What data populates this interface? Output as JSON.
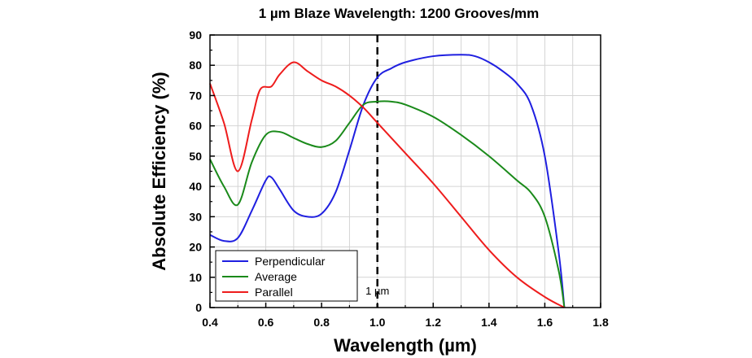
{
  "chart_data": {
    "type": "line",
    "title": "1 µm Blaze Wavelength: 1200 Grooves/mm",
    "xlabel": "Wavelength (µm)",
    "ylabel": "Absolute Efficiency (%)",
    "xlim": [
      0.4,
      1.8
    ],
    "ylim": [
      0,
      90
    ],
    "xticks": [
      "0.4",
      "0.6",
      "0.8",
      "1.0",
      "1.2",
      "1.4",
      "1.6",
      "1.8"
    ],
    "yticks": [
      "0",
      "10",
      "20",
      "30",
      "40",
      "50",
      "60",
      "70",
      "80",
      "90"
    ],
    "grid": true,
    "legend_position": "bottom-left",
    "annotation": {
      "label": "1 µm",
      "x": 1.0
    },
    "series": [
      {
        "name": "Perpendicular",
        "color": "#1f1fe0",
        "x": [
          0.4,
          0.45,
          0.5,
          0.55,
          0.6,
          0.62,
          0.65,
          0.7,
          0.75,
          0.8,
          0.85,
          0.9,
          0.95,
          1.0,
          1.05,
          1.1,
          1.2,
          1.3,
          1.35,
          1.4,
          1.45,
          1.5,
          1.55,
          1.6,
          1.65,
          1.67
        ],
        "y": [
          24,
          22,
          23,
          32,
          42,
          43,
          39,
          32,
          30,
          31,
          38,
          52,
          67,
          76,
          79,
          81,
          83,
          83.5,
          83,
          81,
          78,
          74,
          67,
          50,
          18,
          0
        ]
      },
      {
        "name": "Average",
        "color": "#1a8a1a",
        "x": [
          0.4,
          0.45,
          0.5,
          0.55,
          0.6,
          0.65,
          0.7,
          0.75,
          0.8,
          0.85,
          0.9,
          0.95,
          1.0,
          1.05,
          1.1,
          1.2,
          1.3,
          1.4,
          1.5,
          1.55,
          1.6,
          1.65,
          1.67
        ],
        "y": [
          49,
          40,
          34,
          48,
          57,
          58,
          56,
          54,
          53,
          55,
          61,
          67,
          68,
          68,
          67,
          63,
          57,
          50,
          42,
          38,
          30,
          12,
          0
        ]
      },
      {
        "name": "Parallel",
        "color": "#ee1c1c",
        "x": [
          0.4,
          0.45,
          0.5,
          0.55,
          0.58,
          0.62,
          0.65,
          0.7,
          0.75,
          0.8,
          0.85,
          0.9,
          0.95,
          1.0,
          1.1,
          1.2,
          1.3,
          1.4,
          1.5,
          1.6,
          1.67
        ],
        "y": [
          74,
          61,
          45,
          62,
          72,
          73,
          77,
          81,
          78,
          75,
          73,
          70,
          66,
          61,
          51,
          41,
          30,
          19,
          10,
          3.5,
          0
        ]
      }
    ]
  }
}
